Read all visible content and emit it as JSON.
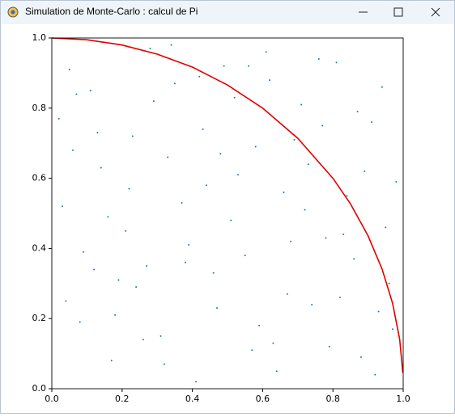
{
  "window": {
    "title": "Simulation de Monte-Carlo : calcul de Pi"
  },
  "chart_data": {
    "type": "scatter",
    "xlim": [
      0,
      1
    ],
    "ylim": [
      0,
      1
    ],
    "xticks": [
      {
        "value": 0,
        "label": "0.0"
      },
      0.2,
      0.4,
      0.6,
      0.8,
      {
        "value": 1,
        "label": "1.0"
      }
    ],
    "yticks": [
      {
        "value": 0,
        "label": "0.0"
      },
      0.2,
      0.4,
      0.6,
      0.8,
      {
        "value": 1,
        "label": "1.0"
      }
    ],
    "series": [
      {
        "type": "scatter",
        "color": "#1f77b4",
        "x": [
          0.05,
          0.12,
          0.23,
          0.31,
          0.44,
          0.52,
          0.67,
          0.73,
          0.88,
          0.95,
          0.03,
          0.17,
          0.28,
          0.39,
          0.47,
          0.58,
          0.62,
          0.79,
          0.84,
          0.91,
          0.08,
          0.14,
          0.21,
          0.35,
          0.41,
          0.55,
          0.69,
          0.76,
          0.82,
          0.98,
          0.02,
          0.19,
          0.26,
          0.33,
          0.49,
          0.51,
          0.64,
          0.71,
          0.86,
          0.93,
          0.06,
          0.11,
          0.24,
          0.37,
          0.43,
          0.57,
          0.61,
          0.78,
          0.89,
          0.97,
          0.09,
          0.16,
          0.29,
          0.32,
          0.46,
          0.53,
          0.66,
          0.74,
          0.81,
          0.94,
          0.04,
          0.13,
          0.22,
          0.38,
          0.42,
          0.59,
          0.68,
          0.72,
          0.87,
          0.92,
          0.07,
          0.18,
          0.27,
          0.34,
          0.48,
          0.56,
          0.63,
          0.77,
          0.83,
          0.96
        ],
        "values": [
          0.91,
          0.34,
          0.72,
          0.15,
          0.58,
          0.83,
          0.27,
          0.64,
          0.09,
          0.46,
          0.52,
          0.08,
          0.97,
          0.41,
          0.23,
          0.69,
          0.88,
          0.12,
          0.55,
          0.76,
          0.19,
          0.63,
          0.45,
          0.87,
          0.02,
          0.38,
          0.71,
          0.94,
          0.26,
          0.59,
          0.77,
          0.31,
          0.14,
          0.66,
          0.92,
          0.48,
          0.05,
          0.81,
          0.37,
          0.22,
          0.68,
          0.85,
          0.29,
          0.53,
          0.74,
          0.11,
          0.96,
          0.43,
          0.62,
          0.17,
          0.39,
          0.49,
          0.82,
          0.07,
          0.33,
          0.61,
          0.56,
          0.24,
          0.93,
          0.86,
          0.25,
          0.73,
          0.57,
          0.36,
          0.89,
          0.18,
          0.42,
          0.51,
          0.79,
          0.04,
          0.84,
          0.21,
          0.35,
          0.98,
          0.67,
          0.92,
          0.13,
          0.75,
          0.44,
          0.3
        ]
      },
      {
        "type": "line",
        "color": "#e00000",
        "x": [
          0,
          0.1,
          0.2,
          0.3,
          0.4,
          0.5,
          0.6,
          0.7,
          0.8,
          0.85,
          0.9,
          0.94,
          0.97,
          0.99,
          0.999
        ],
        "values": [
          1,
          0.995,
          0.98,
          0.954,
          0.917,
          0.866,
          0.8,
          0.714,
          0.6,
          0.527,
          0.436,
          0.341,
          0.243,
          0.141,
          0.045
        ]
      }
    ]
  }
}
